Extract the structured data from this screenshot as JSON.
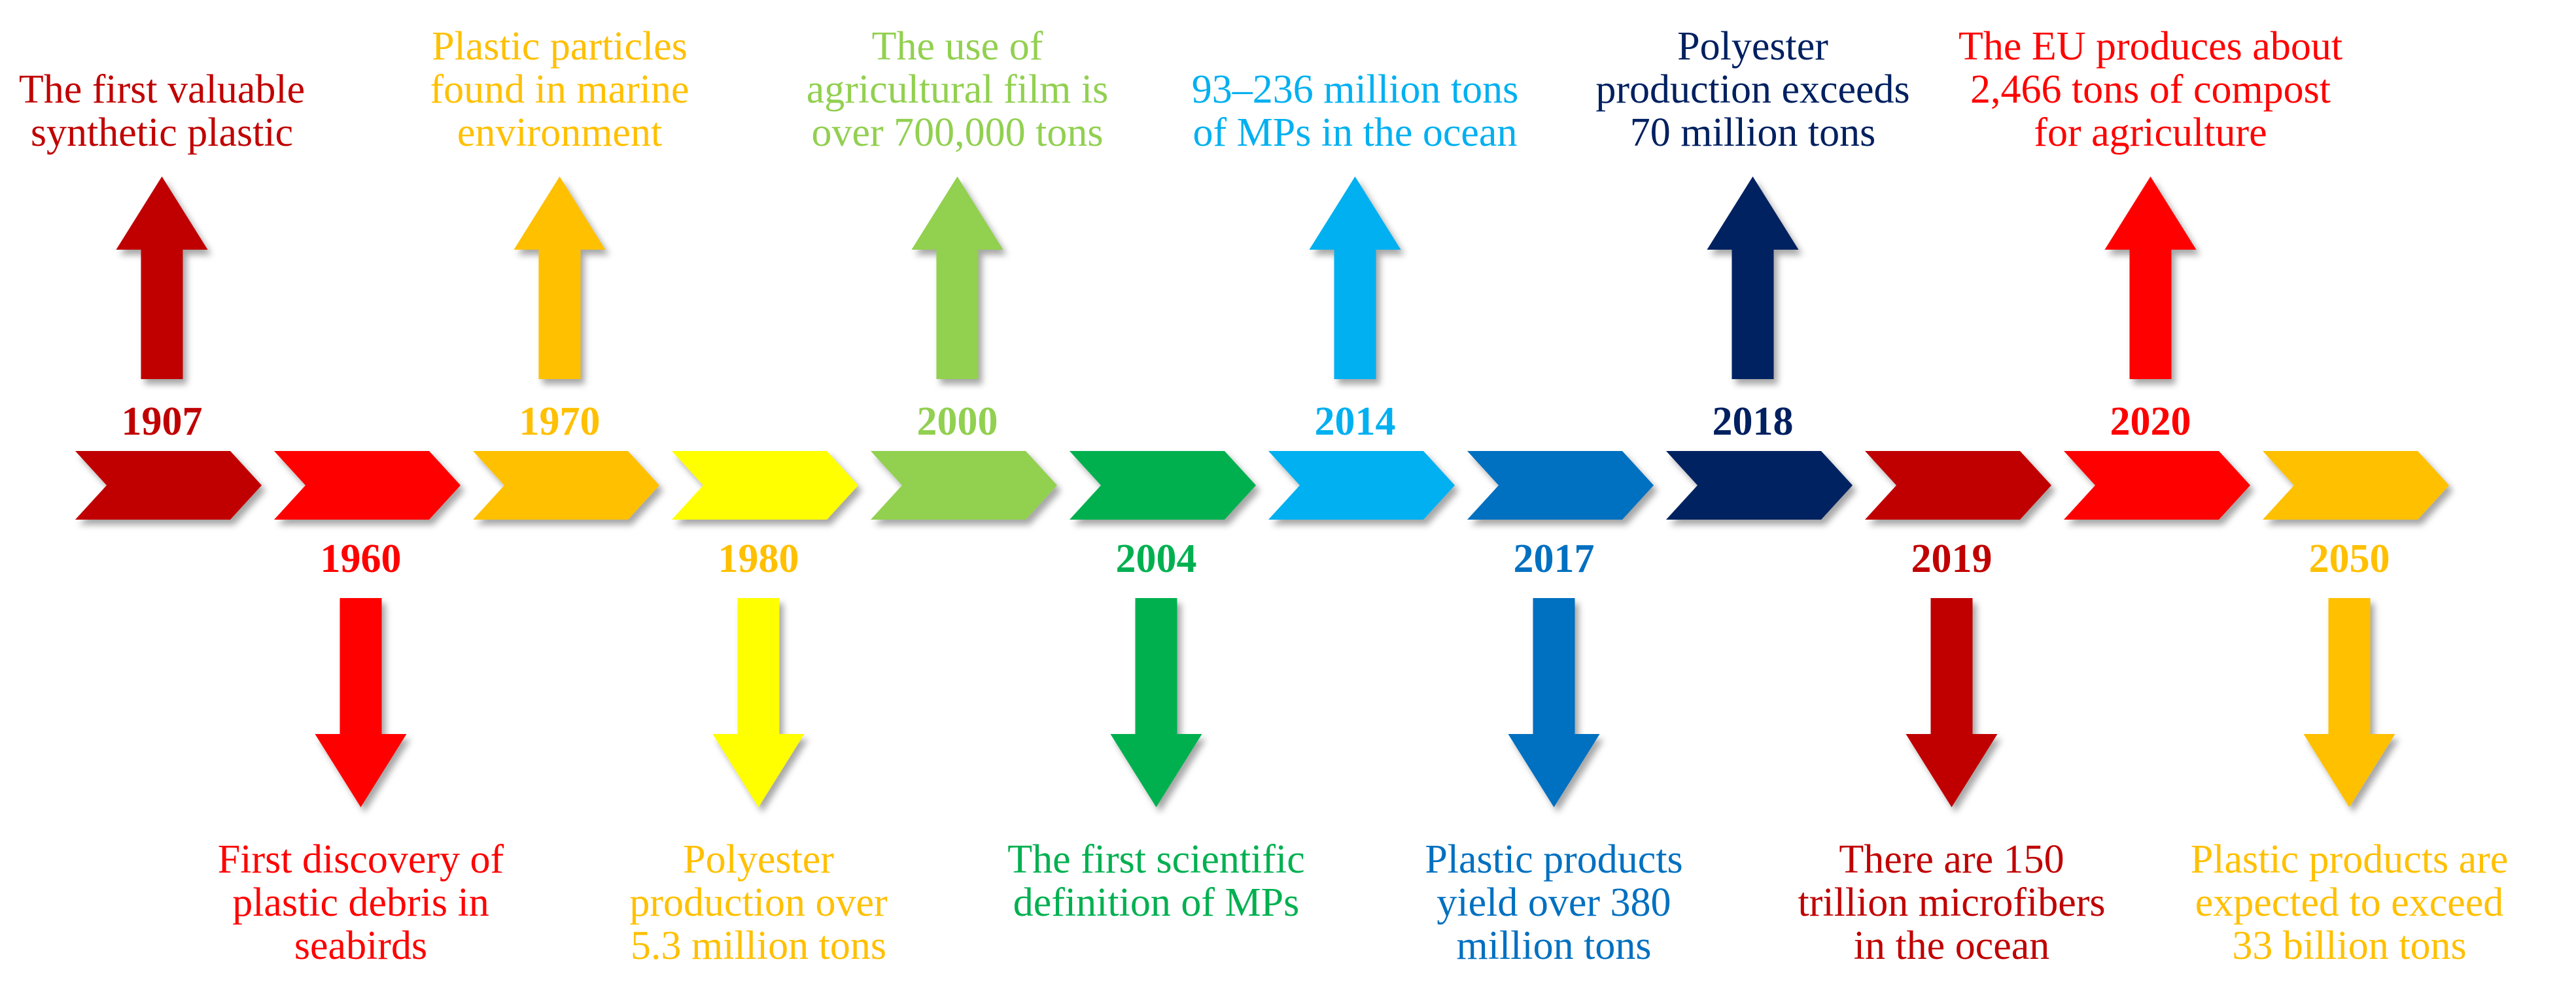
{
  "events": [
    {
      "year": "1907",
      "color": "#C00000",
      "direction": "up",
      "lines": [
        "The first valuable",
        "synthetic plastic"
      ]
    },
    {
      "year": "1960",
      "color": "#FF0000",
      "direction": "down",
      "lines": [
        "First discovery of",
        "plastic debris in",
        "seabirds"
      ]
    },
    {
      "year": "1970",
      "color": "#FFC000",
      "direction": "up",
      "lines": [
        "Plastic particles",
        "found in marine",
        "environment"
      ]
    },
    {
      "year": "1980",
      "color": "#FFFF00",
      "text_color": "#FFC000",
      "direction": "down",
      "lines": [
        "Polyester",
        "production over",
        "5.3 million tons"
      ]
    },
    {
      "year": "2000",
      "color": "#92D050",
      "direction": "up",
      "lines": [
        "The use of",
        "agricultural film is",
        "over 700,000 tons"
      ]
    },
    {
      "year": "2004",
      "color": "#00B050",
      "direction": "down",
      "lines": [
        "The first scientific",
        "definition of MPs"
      ]
    },
    {
      "year": "2014",
      "color": "#00B0F0",
      "direction": "up",
      "lines": [
        "93–236 million tons",
        "of MPs in the ocean"
      ]
    },
    {
      "year": "2017",
      "color": "#0070C0",
      "direction": "down",
      "lines": [
        "Plastic products",
        "yield over 380",
        "million tons"
      ]
    },
    {
      "year": "2018",
      "color": "#002060",
      "direction": "up",
      "lines": [
        "Polyester",
        "production exceeds",
        "70 million tons"
      ]
    },
    {
      "year": "2019",
      "color": "#C00000",
      "direction": "down",
      "lines": [
        "There are 150",
        "trillion microfibers",
        "in the ocean"
      ]
    },
    {
      "year": "2020",
      "color": "#FF0000",
      "direction": "up",
      "lines": [
        "The EU produces about",
        "2,466 tons of compost",
        "for agriculture"
      ]
    },
    {
      "year": "2050",
      "color": "#FFC000",
      "direction": "down",
      "lines": [
        "Plastic products are",
        "expected to exceed",
        "33 billion tons"
      ]
    }
  ]
}
